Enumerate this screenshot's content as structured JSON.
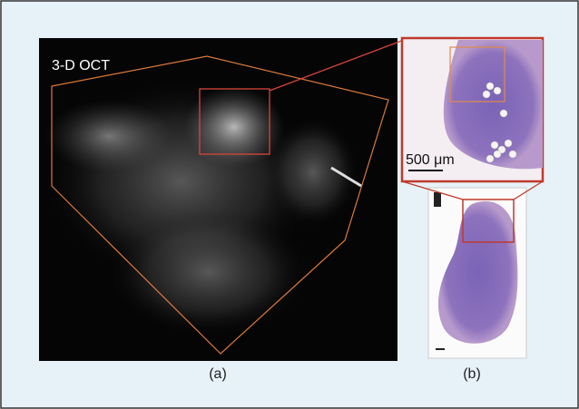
{
  "panel_a": {
    "title": "3-D OCT",
    "caption": "(a)"
  },
  "panel_b": {
    "scale_bar": "500 μm",
    "caption": "(b)"
  }
}
